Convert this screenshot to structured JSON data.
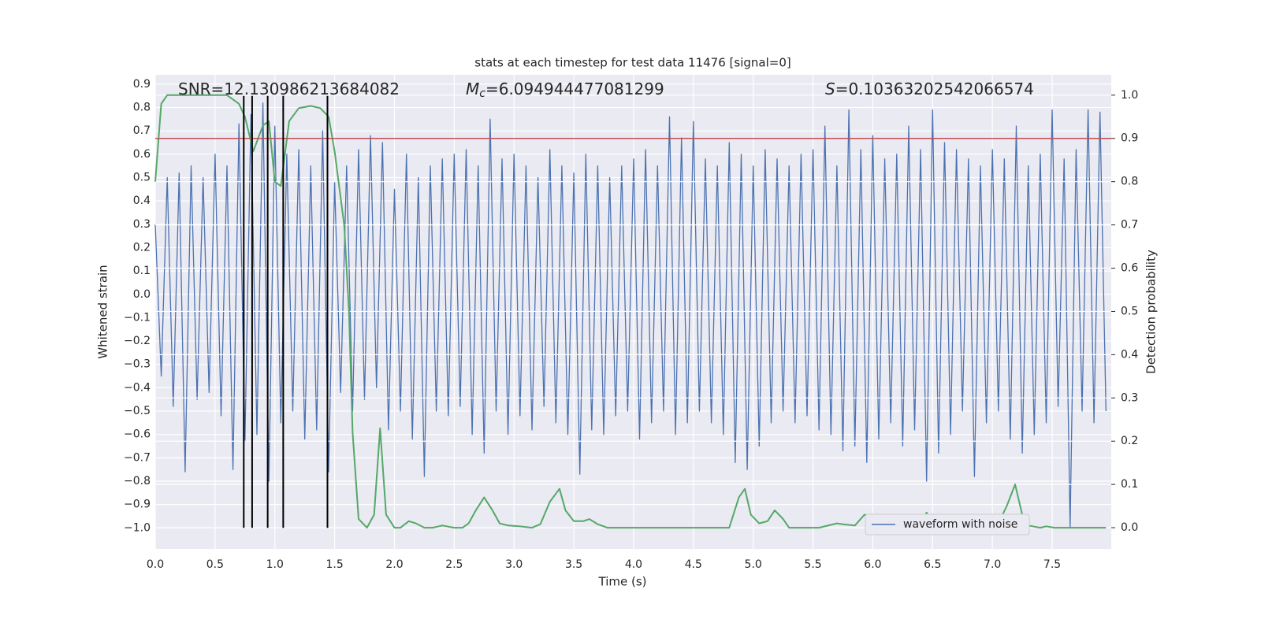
{
  "chart_data": {
    "type": "line",
    "title": "stats at each timestep for test data 11476 [signal=0]",
    "xlabel": "Time (s)",
    "ylabel": "Whitened strain",
    "y2label": "Detection probability",
    "annotations": [
      {
        "text": "SNR=12.130986213684082"
      },
      {
        "symbol": "M",
        "subscript": "c",
        "text": "=6.094944477081299"
      },
      {
        "symbol": "S",
        "text": "=0.10363202542066574"
      }
    ],
    "xlim": [
      0,
      7.994
    ],
    "ylim": [
      -1.09,
      0.94
    ],
    "y2lim": [
      -0.049,
      1.047
    ],
    "xticks": [
      {
        "value": 0,
        "label": "0.0"
      },
      {
        "value": 0.5,
        "label": "0.5"
      },
      {
        "value": 1,
        "label": "1.0"
      },
      {
        "value": 1.5,
        "label": "1.5"
      },
      {
        "value": 2,
        "label": "2.0"
      },
      {
        "value": 2.5,
        "label": "2.5"
      },
      {
        "value": 3,
        "label": "3.0"
      },
      {
        "value": 3.5,
        "label": "3.5"
      },
      {
        "value": 4,
        "label": "4.0"
      },
      {
        "value": 4.5,
        "label": "4.5"
      },
      {
        "value": 5,
        "label": "5.0"
      },
      {
        "value": 5.5,
        "label": "5.5"
      },
      {
        "value": 6,
        "label": "6.0"
      },
      {
        "value": 6.5,
        "label": "6.5"
      },
      {
        "value": 7,
        "label": "7.0"
      },
      {
        "value": 7.5,
        "label": "7.5"
      }
    ],
    "yticks": [
      0.9,
      0.8,
      0.7,
      0.6,
      0.5,
      0.4,
      0.3,
      0.2,
      0.1,
      {
        "value": 0,
        "label": "0.0"
      },
      {
        "value": -0.1,
        "label": "−0.1"
      },
      {
        "value": -0.2,
        "label": "−0.2"
      },
      {
        "value": -0.3,
        "label": "−0.3"
      },
      {
        "value": -0.4,
        "label": "−0.4"
      },
      {
        "value": -0.5,
        "label": "−0.5"
      },
      {
        "value": -0.6,
        "label": "−0.6"
      },
      {
        "value": -0.7,
        "label": "−0.7"
      },
      {
        "value": -0.8,
        "label": "−0.8"
      },
      {
        "value": -0.9,
        "label": "−0.9"
      },
      {
        "value": -1,
        "label": "−1.0"
      }
    ],
    "y2ticks": [
      {
        "value": 1,
        "label": "1.0"
      },
      0.9,
      0.8,
      0.7,
      0.6,
      0.5,
      0.4,
      0.3,
      0.2,
      0.1,
      {
        "value": 0,
        "label": "0.0"
      }
    ],
    "grid": true,
    "legend": "lower right",
    "series": [
      {
        "name": "waveform with noise",
        "color": "#4c72b0",
        "axis": "y",
        "x": [
          0,
          0.05,
          0.1,
          0.15,
          0.2,
          0.25,
          0.3,
          0.35,
          0.4,
          0.45,
          0.5,
          0.55,
          0.6,
          0.65,
          0.7,
          0.75,
          0.8,
          0.85,
          0.9,
          0.95,
          1,
          1.05,
          1.1,
          1.15,
          1.2,
          1.25,
          1.3,
          1.35,
          1.4,
          1.45,
          1.5,
          1.55,
          1.6,
          1.65,
          1.7,
          1.75,
          1.8,
          1.85,
          1.9,
          1.95,
          2,
          2.05,
          2.1,
          2.15,
          2.2,
          2.25,
          2.3,
          2.35,
          2.4,
          2.45,
          2.5,
          2.55,
          2.6,
          2.65,
          2.7,
          2.75,
          2.8,
          2.85,
          2.9,
          2.95,
          3,
          3.05,
          3.1,
          3.15,
          3.2,
          3.25,
          3.3,
          3.35,
          3.4,
          3.45,
          3.5,
          3.55,
          3.6,
          3.65,
          3.7,
          3.75,
          3.8,
          3.85,
          3.9,
          3.95,
          4,
          4.05,
          4.1,
          4.15,
          4.2,
          4.25,
          4.3,
          4.35,
          4.4,
          4.45,
          4.5,
          4.55,
          4.6,
          4.65,
          4.7,
          4.75,
          4.8,
          4.85,
          4.9,
          4.95,
          5,
          5.05,
          5.1,
          5.15,
          5.2,
          5.25,
          5.3,
          5.35,
          5.4,
          5.45,
          5.5,
          5.55,
          5.6,
          5.65,
          5.7,
          5.75,
          5.8,
          5.85,
          5.9,
          5.95,
          6,
          6.05,
          6.1,
          6.15,
          6.2,
          6.25,
          6.3,
          6.35,
          6.4,
          6.45,
          6.5,
          6.55,
          6.6,
          6.65,
          6.7,
          6.75,
          6.8,
          6.85,
          6.9,
          6.95,
          7,
          7.05,
          7.1,
          7.15,
          7.2,
          7.25,
          7.3,
          7.35,
          7.4,
          7.45,
          7.5,
          7.55,
          7.6,
          7.65,
          7.7,
          7.75,
          7.8,
          7.85,
          7.9,
          7.95
        ],
        "values": [
          0.3,
          -0.35,
          0.5,
          -0.48,
          0.52,
          -0.76,
          0.55,
          -0.45,
          0.5,
          -0.42,
          0.6,
          -0.52,
          0.55,
          -0.75,
          0.73,
          -0.63,
          0.77,
          -0.6,
          0.82,
          -0.8,
          0.72,
          -0.55,
          0.6,
          -0.5,
          0.62,
          -0.62,
          0.55,
          -0.58,
          0.7,
          -0.76,
          0.48,
          -0.42,
          0.55,
          -0.5,
          0.62,
          -0.45,
          0.68,
          -0.4,
          0.65,
          -0.58,
          0.45,
          -0.5,
          0.6,
          -0.62,
          0.5,
          -0.78,
          0.55,
          -0.5,
          0.58,
          -0.52,
          0.6,
          -0.48,
          0.62,
          -0.6,
          0.55,
          -0.68,
          0.75,
          -0.5,
          0.58,
          -0.6,
          0.6,
          -0.52,
          0.55,
          -0.58,
          0.5,
          -0.48,
          0.62,
          -0.55,
          0.55,
          -0.6,
          0.52,
          -0.77,
          0.6,
          -0.58,
          0.55,
          -0.6,
          0.5,
          -0.52,
          0.55,
          -0.5,
          0.58,
          -0.62,
          0.62,
          -0.55,
          0.55,
          -0.5,
          0.76,
          -0.6,
          0.67,
          -0.55,
          0.74,
          -0.5,
          0.58,
          -0.55,
          0.55,
          -0.6,
          0.65,
          -0.72,
          0.6,
          -0.75,
          0.55,
          -0.65,
          0.62,
          -0.55,
          0.58,
          -0.5,
          0.55,
          -0.55,
          0.6,
          -0.52,
          0.62,
          -0.58,
          0.72,
          -0.6,
          0.55,
          -0.67,
          0.79,
          -0.65,
          0.62,
          -0.72,
          0.68,
          -0.62,
          0.58,
          -0.55,
          0.6,
          -0.65,
          0.72,
          -0.58,
          0.62,
          -0.8,
          0.79,
          -0.68,
          0.65,
          -0.6,
          0.62,
          -0.5,
          0.58,
          -0.78,
          0.55,
          -0.55,
          0.62,
          -0.5,
          0.58,
          -0.62,
          0.72,
          -0.68,
          0.55,
          -0.6,
          0.6,
          -0.55,
          0.79,
          -0.48,
          0.58,
          -1.0,
          0.62,
          -0.5,
          0.79,
          -0.55,
          0.78,
          -0.5
        ]
      },
      {
        "color": "#55a868",
        "axis": "y2",
        "x": [
          0,
          0.05,
          0.1,
          0.2,
          0.4,
          0.6,
          0.7,
          0.75,
          0.82,
          0.9,
          0.95,
          1,
          1.05,
          1.12,
          1.2,
          1.3,
          1.38,
          1.45,
          1.5,
          1.58,
          1.62,
          1.65,
          1.7,
          1.77,
          1.83,
          1.88,
          1.93,
          2,
          2.05,
          2.12,
          2.18,
          2.25,
          2.32,
          2.4,
          2.5,
          2.57,
          2.62,
          2.68,
          2.75,
          2.82,
          2.88,
          2.95,
          3.05,
          3.15,
          3.22,
          3.3,
          3.38,
          3.43,
          3.5,
          3.58,
          3.63,
          3.7,
          3.78,
          4.2,
          4.8,
          4.88,
          4.93,
          4.98,
          5.05,
          5.12,
          5.18,
          5.25,
          5.3,
          5.55,
          5.7,
          5.75,
          5.85,
          5.93,
          6,
          6.08,
          6.13,
          6.2,
          6.27,
          6.33,
          6.4,
          6.45,
          6.5,
          6.55,
          6.7,
          6.9,
          7.05,
          7.12,
          7.19,
          7.25,
          7.3,
          7.4,
          7.45,
          7.52,
          7.95
        ],
        "values": [
          0.8,
          0.98,
          1.0,
          1.0,
          1.0,
          1.0,
          0.98,
          0.95,
          0.87,
          0.93,
          0.94,
          0.8,
          0.79,
          0.94,
          0.97,
          0.975,
          0.97,
          0.95,
          0.87,
          0.7,
          0.5,
          0.22,
          0.02,
          0.0,
          0.03,
          0.23,
          0.03,
          0.0,
          0.0,
          0.015,
          0.01,
          0.0,
          0.0,
          0.005,
          0.0,
          0.0,
          0.01,
          0.04,
          0.07,
          0.04,
          0.01,
          0.005,
          0.003,
          0.0,
          0.008,
          0.06,
          0.09,
          0.04,
          0.015,
          0.015,
          0.02,
          0.008,
          0.0,
          0.0,
          0.0,
          0.07,
          0.09,
          0.03,
          0.01,
          0.015,
          0.04,
          0.02,
          0.0,
          0.0,
          0.01,
          0.008,
          0.005,
          0.03,
          0.025,
          0.015,
          0.015,
          0.03,
          0.02,
          0.005,
          0.01,
          0.035,
          0.007,
          0.0,
          0.0,
          0.0,
          0.01,
          0.05,
          0.1,
          0.03,
          0.005,
          0.0,
          0.003,
          0.0,
          0.0
        ]
      }
    ],
    "threshold": {
      "y2": 0.9,
      "color": "#c44e52"
    },
    "vlines": {
      "x": [
        0.74,
        0.81,
        0.94,
        1.07,
        1.44
      ],
      "ymin": -1.0,
      "ymax": 0.85,
      "color": "#000000"
    }
  }
}
